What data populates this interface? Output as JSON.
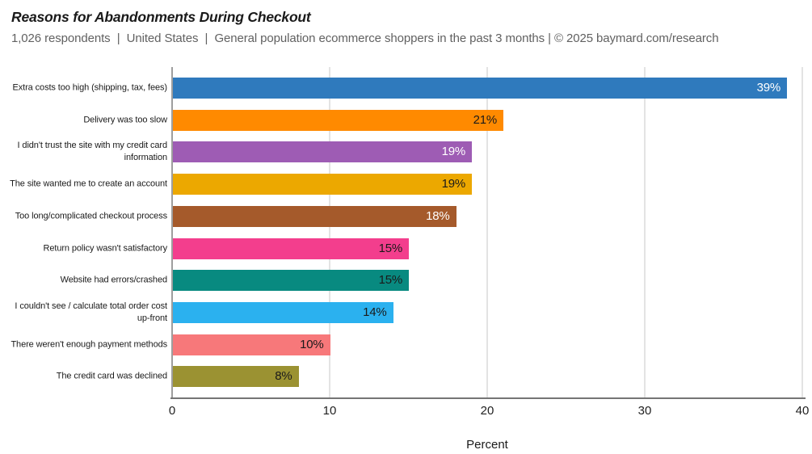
{
  "header": {
    "title": "Reasons for Abandonments During Checkout",
    "subtitle": "1,026 respondents  |  United States  |  General population ecommerce shoppers in the past 3 months | © 2025 baymard.com/research"
  },
  "chart_data": {
    "type": "bar",
    "orientation": "horizontal",
    "title": "Reasons for Abandonments During Checkout",
    "categories": [
      "Extra costs too high (shipping, tax, fees)",
      "Delivery was too slow",
      "I didn't trust the site with my credit card information",
      "The site wanted me to create an account",
      "Too long/complicated checkout process",
      "Return policy wasn't satisfactory",
      "Website had errors/crashed",
      "I couldn't see / calculate total order cost up-front",
      "There weren't enough payment methods",
      "The credit card was declined"
    ],
    "values": [
      39,
      21,
      19,
      19,
      18,
      15,
      15,
      14,
      10,
      8
    ],
    "value_labels": [
      "39%",
      "21%",
      "19%",
      "19%",
      "18%",
      "15%",
      "15%",
      "14%",
      "10%",
      "8%"
    ],
    "bar_colors": [
      "#2F7ABD",
      "#FF8A00",
      "#9E5CB4",
      "#ECA800",
      "#A55A2B",
      "#F33E8D",
      "#088A80",
      "#2BB1EF",
      "#F7787A",
      "#9B9232"
    ],
    "value_label_colors": [
      "#FFFFFF",
      "#1A1A1A",
      "#FFFFFF",
      "#1A1A1A",
      "#FFFFFF",
      "#1A1A1A",
      "#1A1A1A",
      "#1A1A1A",
      "#1A1A1A",
      "#1A1A1A"
    ],
    "xlabel": "Percent",
    "x_ticks": [
      0,
      10,
      20,
      30,
      40
    ],
    "xlim": [
      0,
      40
    ],
    "grid": "vertical-light",
    "gridline_color": "#e3e3e3"
  }
}
